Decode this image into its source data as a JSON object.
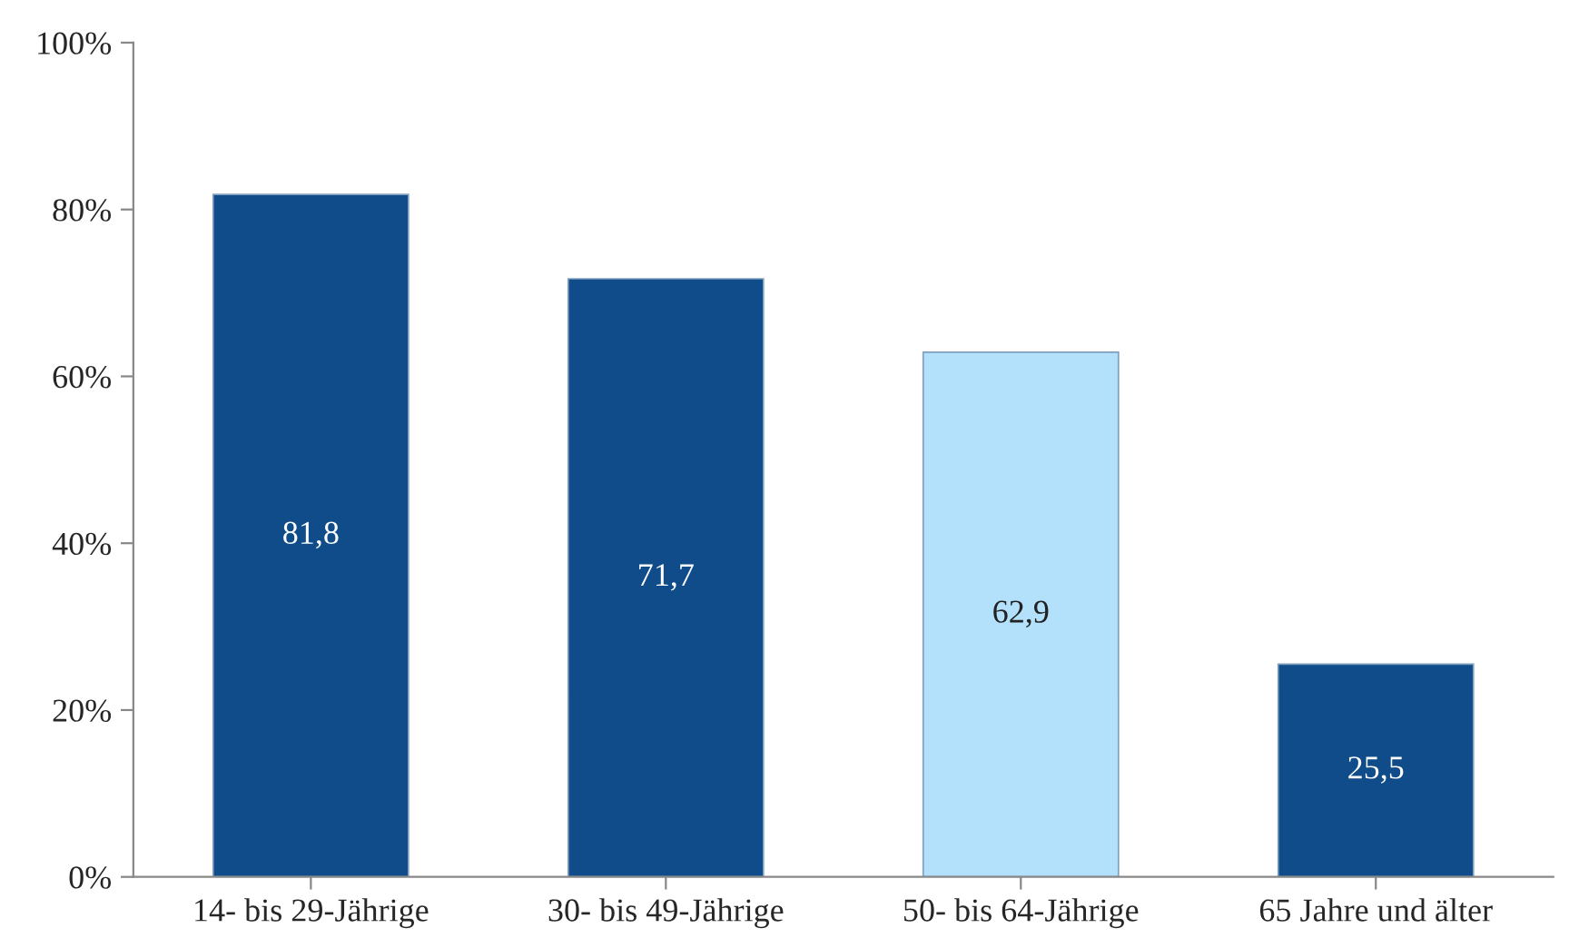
{
  "chart_data": {
    "type": "bar",
    "categories": [
      "14- bis 29-Jährige",
      "30- bis 49-Jährige",
      "50- bis 64-Jährige",
      "65 Jahre und älter"
    ],
    "values": [
      81.8,
      71.7,
      62.9,
      25.5
    ],
    "colors": [
      "#0f4c89",
      "#0f4c89",
      "#b3e1fc",
      "#0f4c89"
    ],
    "value_labels": [
      "81,8",
      "71,7",
      "62,9",
      "25,5"
    ],
    "ylim": [
      0,
      100
    ],
    "yticks": [
      {
        "value": 0,
        "label": "0%"
      },
      {
        "value": 20,
        "label": "20%"
      },
      {
        "value": 40,
        "label": "40%"
      },
      {
        "value": 60,
        "label": "60%"
      },
      {
        "value": 80,
        "label": "80%"
      },
      {
        "value": 100,
        "label": "100%"
      }
    ],
    "grid": false,
    "legend": false
  }
}
